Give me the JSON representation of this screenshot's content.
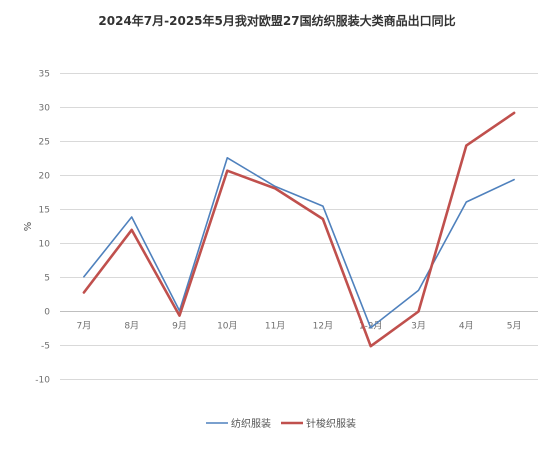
{
  "chart_data": {
    "type": "line",
    "title": "2024年7月-2025年5月我对欧盟27国纺织服装大类商品出口同比",
    "xlabel": "",
    "ylabel": "%",
    "categories": [
      "7月",
      "8月",
      "9月",
      "10月",
      "11月",
      "12月",
      "1-2月",
      "3月",
      "4月",
      "5月"
    ],
    "ylim": [
      -10,
      35
    ],
    "yticks": [
      -10,
      -5,
      0,
      5,
      10,
      15,
      20,
      25,
      30,
      35
    ],
    "ytick_labels": [
      "-10",
      "-5",
      "0",
      "5",
      "10",
      "15",
      "20",
      "25",
      "30",
      "35"
    ],
    "grid": true,
    "legend_position": "bottom",
    "series": [
      {
        "name": "纺织服装",
        "color": "#4f81bd",
        "values": [
          5.1,
          13.9,
          0.1,
          22.6,
          18.4,
          15.5,
          -2.4,
          3.1,
          16.1,
          19.4
        ]
      },
      {
        "name": "针梭织服装",
        "color": "#c0504d",
        "values": [
          2.8,
          12.0,
          -0.6,
          20.7,
          18.1,
          13.6,
          -5.1,
          0.0,
          24.4,
          29.2
        ]
      }
    ]
  }
}
